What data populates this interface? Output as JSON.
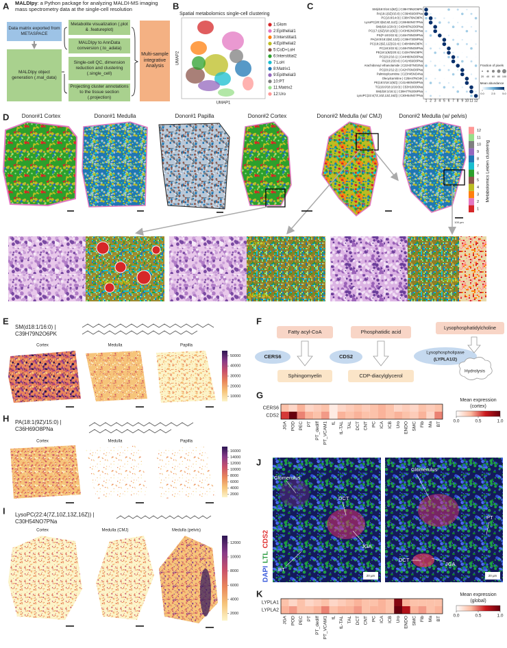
{
  "labels": [
    "A",
    "B",
    "C",
    "D",
    "E",
    "F",
    "G",
    "H",
    "I",
    "J",
    "K"
  ],
  "a": {
    "title_bold": "MALDIpy",
    "title": ": a Python package for analyzing MALDI-MS imaging mass spectrometry data at the single-cell resolution",
    "input": "Data matrix exported from METASPACE",
    "object": "MALDIpy object generation (.mal_data)",
    "steps": [
      "Metabolite visualization (.plot & .featureplot)",
      "MALDIpy to AnnData conversion (.to_adata)",
      "Single-cell QC, dimension reduction and clustering (.single_cell)",
      "Projecting cluster annotations to the tissue section (.projection)"
    ],
    "output": "Multi-sample integrative Analysis"
  },
  "b": {
    "title": "Spatial metabolomics single-cell clustering",
    "x_label": "UMAP1",
    "y_label": "UMAP2",
    "clusters": [
      "1:Glom",
      "2:Epithelial1",
      "3:Interstitial1",
      "4:Epithelial2",
      "5:CoD+LoH",
      "6:Interstitial2",
      "7:LoH",
      "8:Matrix1",
      "9:Epithelial3",
      "10:PT",
      "11:Matrix2",
      "12:Uro"
    ],
    "colors": [
      "#d62728",
      "#e377c2",
      "#ff7f0e",
      "#bcbd22",
      "#8c564b",
      "#2ca02c",
      "#17becf",
      "#1f77b4",
      "#9467bd",
      "#7f7f7f",
      "#98df8a",
      "#ff9896"
    ]
  },
  "c": {
    "metabolites": [
      "SM(d18:0/16:1(9Z)) | C39H78N2O6PK",
      "PA(18:1(9Z)/15:0) | C36H69O8PNa",
      "PC(16:0/14:0) | C38H76NO8PK",
      "LysoPC(20:3(5Z,8Z,11Z)) | C28H50NO7PNa",
      "SM(d18:1/20:0) | C43H87N2O6PNa",
      "PC(17:1(9Z)/18:1(9Z)) | C43H82NO8PNa",
      "PS(P-18:0/22:6) | C46H78NO9PNa",
      "PA(18:0/18:2(9Z,12Z)) | C39H73O8PNa",
      "PC(18:2(9Z,12Z)/22:4) | C48H84NO8PK",
      "PC(18:3/22:6) | C48H78NO8PNa",
      "PE(18:1(9Z)/20:4) | C43H76NO8PK",
      "PC(20:2/16:1) | C44H80NO8PNa",
      "PA(18:2/20:4) | C41H69O8PNa",
      "Arachidonoyl ethanolamide | C22H37NO2Na",
      "PC(20:2/12:2) | C42H76NO8PNa",
      "Palmitoylcarnitine | C23H45NO4Na",
      "Oleoylcarnitine | C25H47NO4K",
      "PE(18:0/18:1(9Z)) | C41H80NO8PNa",
      "TG(16:0/18:1/16:0) | C53H100O6Na",
      "SM(d18:1/16:1) | C39H77N2O6PNa",
      "LysoPC(22:4(7Z,10Z,13Z,16Z)) | C30H54NO7PNa"
    ],
    "columns": [
      1,
      2,
      3,
      4,
      5,
      6,
      7,
      8,
      9,
      10,
      11,
      12
    ],
    "size_title": "Fraction of pixels",
    "size_ticks": [
      20,
      40,
      60,
      80,
      100
    ],
    "color_title": "Mean abundance",
    "color_lim": [
      0,
      5
    ],
    "color_ticks": [
      {
        "value": 0,
        "label": "0.0"
      },
      2.5,
      {
        "value": 5,
        "label": "5.0"
      }
    ],
    "colors": [
      "#f7fbff",
      "#6baed6",
      "#08306b"
    ]
  },
  "d": {
    "samples": [
      "Donor#1 Cortex",
      "Donor#1 Medulla",
      "Donor#1 Papilla",
      "Donor#2 Cortex",
      "Donor#2 Medulla (w/ CMJ)",
      "Donor#2 Medulla (w/ pelvis)"
    ],
    "colorbar_title": "Metabolomics Leiden clustering",
    "colorbar_ticks": [
      1,
      2,
      3,
      4,
      5,
      6,
      7,
      8,
      9,
      10,
      11,
      12
    ],
    "scale_bar": "100 µm",
    "zoom_labels": [
      "Glomerulus",
      "Cortex",
      "Medulla",
      "Pelvis"
    ]
  },
  "intensity_colors": [
    "#fcf4c9",
    "#f6c47a",
    "#e9865a",
    "#c8506b",
    "#873a87",
    "#2c1552"
  ],
  "e": {
    "name": "SM(d18:1/16:0) |",
    "formula": "C39H79N2O6PK",
    "regions": [
      "Cortex",
      "Medulla",
      "Papilla"
    ],
    "clim": [
      5000,
      55000
    ],
    "cticks": [
      10000,
      20000,
      30000,
      40000,
      50000
    ]
  },
  "h": {
    "name": "PA(18:1(9Z)/15:0) |",
    "formula": "C36H69O8PNa",
    "regions": [
      "Cortex",
      "Medulla",
      "Papilla"
    ],
    "clim": [
      1000,
      17500
    ],
    "cticks": [
      2000,
      4000,
      6000,
      8000,
      10000,
      12000,
      14000,
      16000
    ]
  },
  "i": {
    "name": "LysoPC(22:4(7Z,10Z,13Z,16Z)) |",
    "formula": "C30H54NO7PNa",
    "regions": [
      "Cortex",
      "Medulla (CMJ)",
      "Medulla (pelvis)"
    ],
    "clim": [
      1000,
      13000
    ],
    "cticks": [
      2000,
      4000,
      6000,
      8000,
      10000,
      12000
    ]
  },
  "f": {
    "substrates": [
      "Fatty acyl-CoA",
      "Phosphatidic acid",
      "Lysophosphatidylcholine"
    ],
    "enzymes": [
      "CERS6",
      "CDS2"
    ],
    "lysophospholipase": "Lysophospholipase",
    "lypla": "(LYPLA1/2)",
    "products": [
      "Sphingomyelin",
      "CDP-diacylglycerol",
      "Hydrolysis"
    ]
  },
  "j": {
    "stains": [
      "DAPI",
      "LTL",
      "CDS2"
    ],
    "stain_colors": [
      "#3b5bdb",
      "#2f9e44",
      "#e03131"
    ],
    "labels": [
      "Glomerulus",
      "DCT",
      "JGA",
      "PT"
    ],
    "scale_bar": "20 µm"
  },
  "chart_data": [
    {
      "type": "heatmap",
      "categories": [
        "JGA",
        "POD",
        "PEC",
        "PT",
        "PT_dediff",
        "PT_VCAM1",
        "tL",
        "tL-TAL",
        "TAL",
        "DCT",
        "CNT",
        "PC",
        "ICA",
        "ICB",
        "Uro",
        "ENDO",
        "SMC",
        "Fib",
        "Ma",
        "BT"
      ],
      "rows": [
        "CERS6",
        "CDS2"
      ],
      "values": [
        [
          0.3,
          0.2,
          0.35,
          0.2,
          0.25,
          0.3,
          0.1,
          0.2,
          0.25,
          0.3,
          0.25,
          0.3,
          0.35,
          0.3,
          0.2,
          0.25,
          0.2,
          0.3,
          0.25,
          0.3
        ],
        [
          0.6,
          1.0,
          0.45,
          0.35,
          0.3,
          0.4,
          0.1,
          0.35,
          0.3,
          0.35,
          0.3,
          0.3,
          0.35,
          0.3,
          0.35,
          0.3,
          0.25,
          0.35,
          0.2,
          0.45
        ]
      ],
      "legend_title": "Mean expression",
      "legend_subtitle": "(cortex)",
      "zlim": [
        0,
        1
      ],
      "zticks": [
        {
          "value": 0,
          "label": "0.0"
        },
        0.5,
        {
          "value": 1,
          "label": "1.0"
        }
      ],
      "colors": [
        "#ffffff",
        "#fcbba1",
        "#cb181d",
        "#67000d"
      ]
    },
    {
      "type": "heatmap",
      "categories": [
        "JGA",
        "POD",
        "PEC",
        "PT",
        "PT_dediff",
        "PT_VCAM1",
        "tL",
        "tL-TAL",
        "TAL",
        "DCT",
        "CNT",
        "PC",
        "ICA",
        "ICB",
        "Uro",
        "ENDO",
        "SMC",
        "Fib",
        "Ma",
        "BT"
      ],
      "rows": [
        "LYPLA1",
        "LYPLA2"
      ],
      "values": [
        [
          0.3,
          0.2,
          0.3,
          0.2,
          0.25,
          0.3,
          0.2,
          0.25,
          0.3,
          0.35,
          0.3,
          0.3,
          0.35,
          0.3,
          0.9,
          0.35,
          0.3,
          0.3,
          0.3,
          0.3
        ],
        [
          0.35,
          0.4,
          0.3,
          0.3,
          0.35,
          0.45,
          0.3,
          0.35,
          0.35,
          0.4,
          0.3,
          0.35,
          0.35,
          0.3,
          1.0,
          0.75,
          0.35,
          0.4,
          0.3,
          0.35
        ]
      ],
      "legend_title": "Mean expression",
      "legend_subtitle": "(global)",
      "zlim": [
        0,
        1
      ],
      "zticks": [
        {
          "value": 0,
          "label": "0.0"
        },
        0.5,
        {
          "value": 1,
          "label": "1.0"
        }
      ],
      "colors": [
        "#ffffff",
        "#fcbba1",
        "#cb181d",
        "#67000d"
      ]
    }
  ]
}
